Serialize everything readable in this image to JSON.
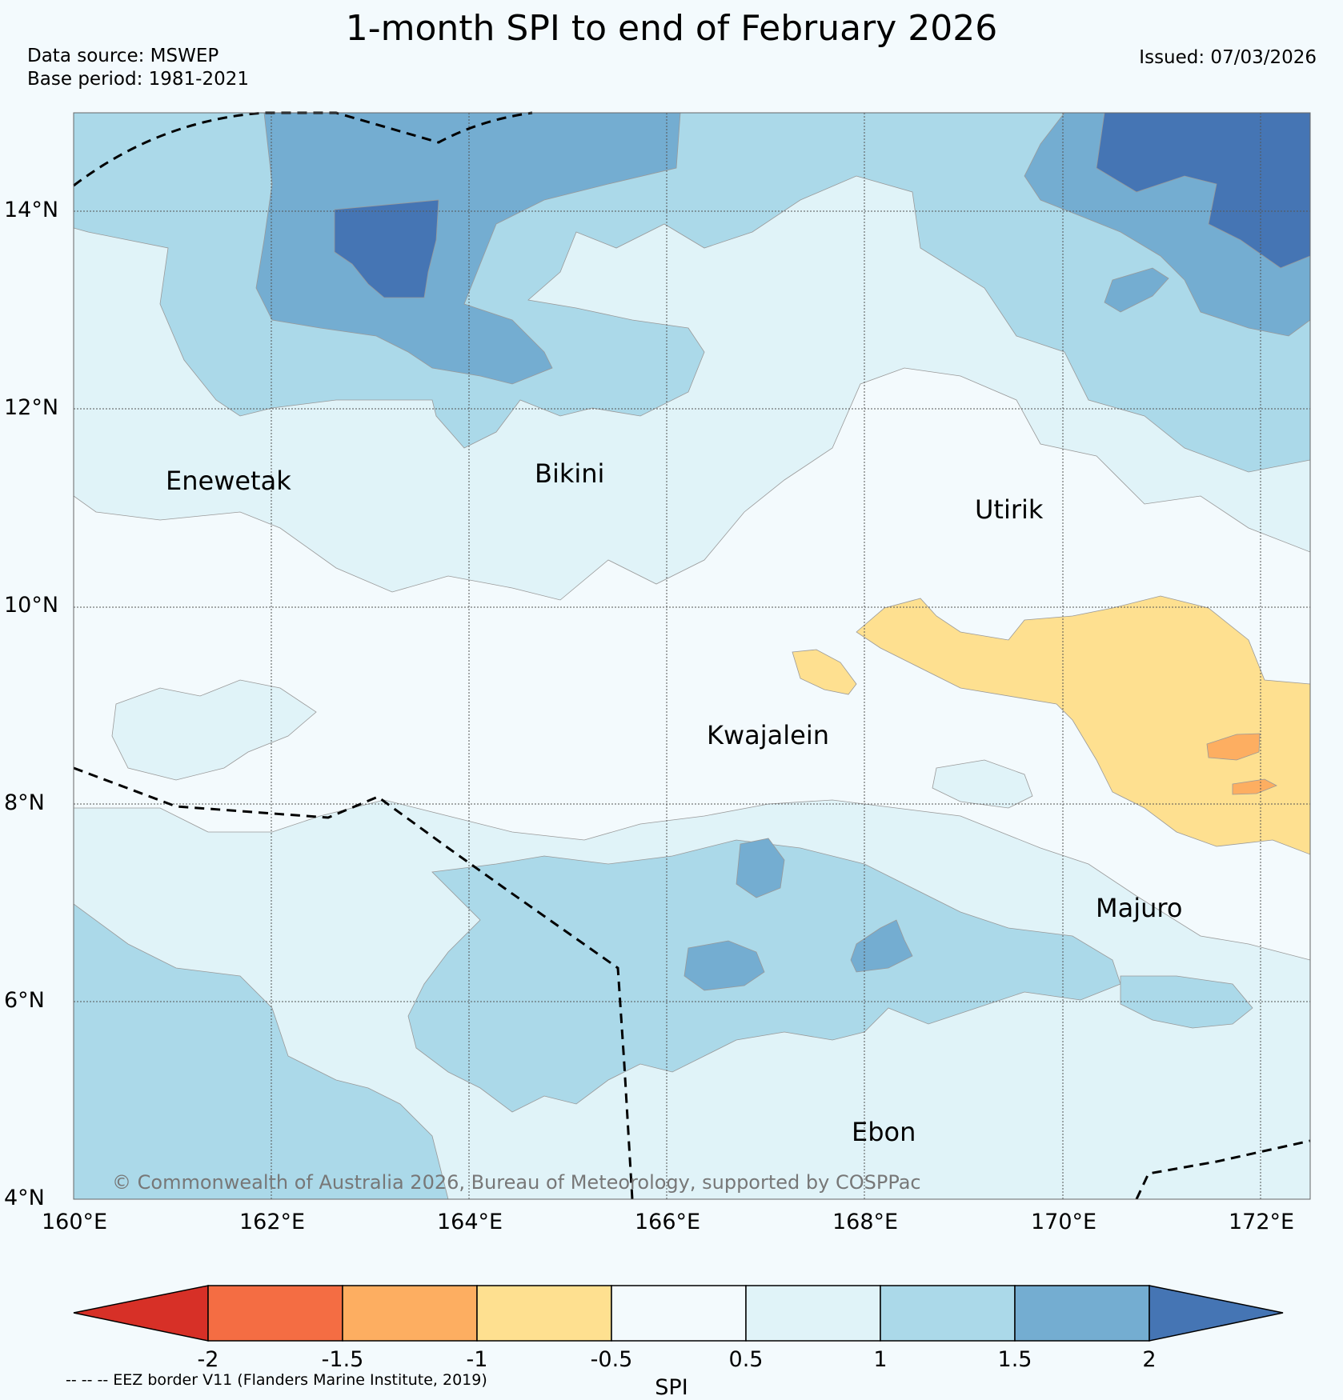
{
  "header": {
    "title": "1-month SPI to end of February 2026",
    "data_source": "Data source: MSWEP",
    "base_period": "Base period: 1981-2021",
    "issued": "Issued: 07/03/2026"
  },
  "map": {
    "lon_range": [
      160,
      172.5
    ],
    "lat_range": [
      4,
      15
    ],
    "lon_ticks": [
      "160°E",
      "162°E",
      "164°E",
      "166°E",
      "168°E",
      "170°E",
      "172°E"
    ],
    "lat_ticks": [
      "4°N",
      "6°N",
      "8°N",
      "10°N",
      "12°N",
      "14°N"
    ],
    "places": [
      {
        "name": "Enewetak",
        "lon": 162.2,
        "lat": 11.3
      },
      {
        "name": "Bikini",
        "lon": 165.1,
        "lat": 11.35
      },
      {
        "name": "Utirik",
        "lon": 169.4,
        "lat": 11.0
      },
      {
        "name": "Kwajalein",
        "lon": 167.4,
        "lat": 8.7
      },
      {
        "name": "Majuro",
        "lon": 171.0,
        "lat": 6.95
      },
      {
        "name": "Ebon",
        "lon": 167.8,
        "lat": 4.7
      }
    ],
    "copyright": "© Commonwealth of Australia 2026, Bureau of Meteorology, supported by COSPPac"
  },
  "colorbar": {
    "title": "SPI",
    "labels": [
      "-2",
      "-1.5",
      "-1",
      "-0.5",
      "0.5",
      "1",
      "1.5",
      "2"
    ],
    "colors": [
      "#d73027",
      "#f46d43",
      "#fdae61",
      "#fee090",
      "#f3fafd",
      "#e0f3f8",
      "#abd9e9",
      "#74add1",
      "#4575b4"
    ]
  },
  "footnote": "-- -- -- EEZ border V11 (Flanders Marine Institute, 2019)"
}
